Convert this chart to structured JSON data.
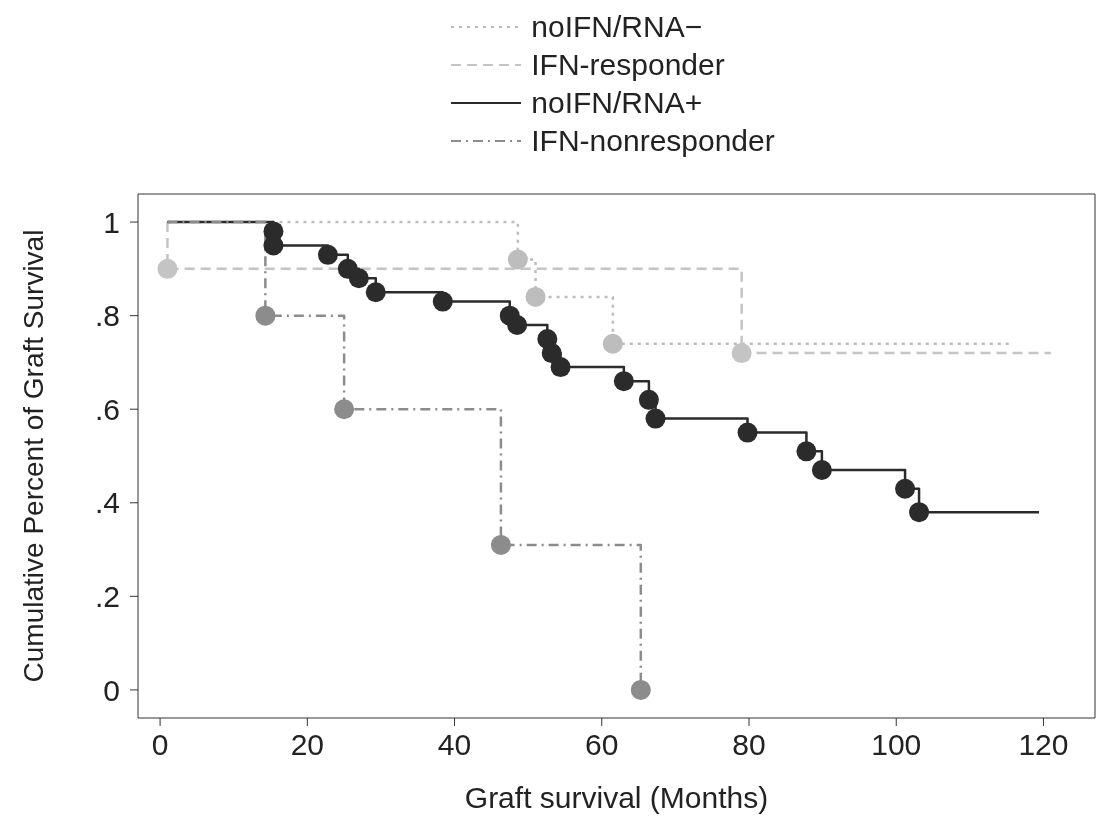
{
  "chart_data": {
    "type": "step",
    "xlabel": "Graft survival (Months)",
    "ylabel": "Cumulative Percent of Graft Survival",
    "legend": "top",
    "grid": false,
    "marker": "circle",
    "xlim": [
      -3,
      127
    ],
    "xticks": [
      0,
      20,
      40,
      60,
      80,
      100,
      120
    ],
    "ylim": [
      -0.06,
      1.06
    ],
    "yticks": [
      0,
      {
        "value": 0.2,
        "label": ".2"
      },
      {
        "value": 0.4,
        "label": ".4"
      },
      {
        "value": 0.6,
        "label": ".6"
      },
      {
        "value": 0.8,
        "label": ".8"
      },
      1
    ],
    "series": [
      {
        "name": "noIFN/RNA−",
        "color": "#bdbdbd",
        "line_style": "dotted",
        "x": [
          1,
          48.6,
          51,
          61.5,
          115.7
        ],
        "values": [
          1,
          0.92,
          0.84,
          0.74,
          0.74
        ]
      },
      {
        "name": "IFN-responder",
        "color": "#c4c4c4",
        "line_style": "dashed",
        "x": [
          1,
          1,
          79,
          121
        ],
        "values": [
          1,
          0.9,
          0.72,
          0.72
        ]
      },
      {
        "name": "noIFN/RNA+",
        "color": "#2b2b2b",
        "line_style": "solid",
        "x": [
          1,
          15.4,
          15.4,
          22.8,
          25.5,
          27,
          29.3,
          38.4,
          47.5,
          48.5,
          52.6,
          53.2,
          54.4,
          63,
          66.4,
          67.3,
          79.8,
          87.8,
          89.9,
          101.2,
          103.1,
          119.4
        ],
        "values": [
          1,
          0.98,
          0.95,
          0.93,
          0.9,
          0.88,
          0.85,
          0.83,
          0.8,
          0.78,
          0.75,
          0.72,
          0.69,
          0.66,
          0.62,
          0.58,
          0.55,
          0.51,
          0.47,
          0.43,
          0.38,
          0.38
        ]
      },
      {
        "name": "IFN-nonresponder",
        "color": "#8c8c8c",
        "line_style": "dashdot",
        "x": [
          1,
          14.3,
          25,
          46.3,
          65.3
        ],
        "values": [
          1,
          0.8,
          0.6,
          0.31,
          0
        ]
      }
    ]
  }
}
